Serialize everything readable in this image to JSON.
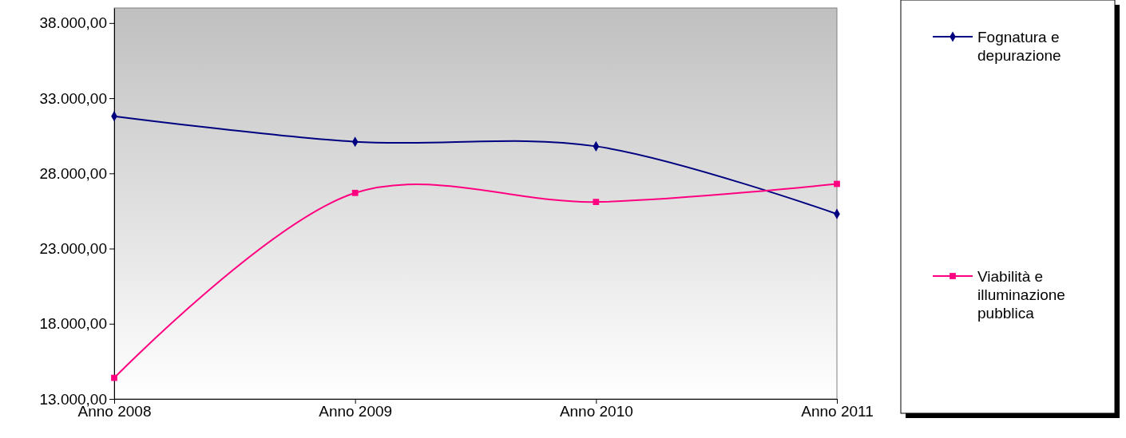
{
  "chart_data": {
    "type": "line",
    "categories": [
      "Anno 2008",
      "Anno 2009",
      "Anno 2010",
      "Anno 2011"
    ],
    "series": [
      {
        "name": "Fognatura e depurazione",
        "color": "#000080",
        "marker": "diamond",
        "values": [
          31800,
          30100,
          29800,
          25300
        ]
      },
      {
        "name": "Viabilità e illuminazione pubblica",
        "color": "#ff0080",
        "marker": "square",
        "values": [
          14400,
          26700,
          26100,
          27300
        ]
      }
    ],
    "ylim": [
      13000,
      39000
    ],
    "yticks": [
      {
        "value": 13000,
        "label": "13.000,00"
      },
      {
        "value": 18000,
        "label": "18.000,00"
      },
      {
        "value": 23000,
        "label": "23.000,00"
      },
      {
        "value": 28000,
        "label": "28.000,00"
      },
      {
        "value": 33000,
        "label": "33.000,00"
      },
      {
        "value": 38000,
        "label": "38.000,00"
      }
    ],
    "grid": false,
    "legend": "right"
  }
}
